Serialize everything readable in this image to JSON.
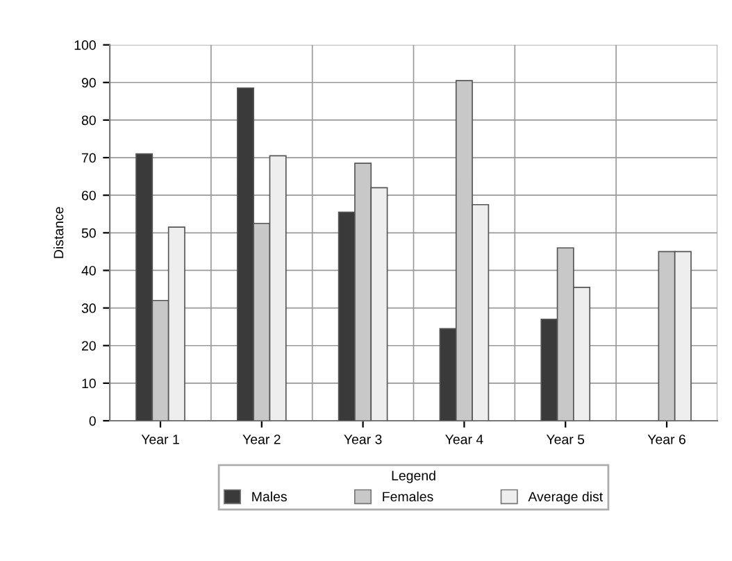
{
  "chart_data": {
    "type": "bar",
    "ylabel": "Distance",
    "categories": [
      "Year 1",
      "Year 2",
      "Year 3",
      "Year 4",
      "Year 5",
      "Year 6"
    ],
    "series": [
      {
        "name": "Males",
        "color": "#3a3a3a",
        "values": [
          71,
          88.5,
          55.5,
          24.5,
          27,
          null
        ]
      },
      {
        "name": "Females",
        "color": "#c8c8c8",
        "values": [
          32,
          52.5,
          68.5,
          90.5,
          46,
          45
        ]
      },
      {
        "name": "Average dist",
        "color": "#eeeeee",
        "values": [
          51.5,
          70.5,
          62,
          57.5,
          35.5,
          45
        ]
      }
    ],
    "ylim": [
      0,
      100
    ],
    "yticks": [
      0,
      10,
      20,
      30,
      40,
      50,
      60,
      70,
      80,
      90,
      100
    ],
    "grid": true,
    "legend": "bottom",
    "legend_title": "Legend"
  }
}
